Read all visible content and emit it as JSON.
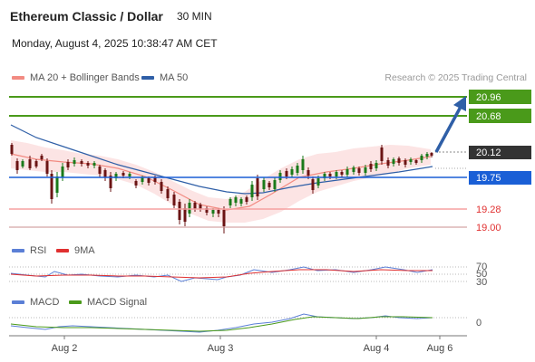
{
  "header": {
    "title": "Ethereum Classic / Dollar",
    "timeframe": "30 MIN",
    "datetime": "Monday, August 4, 2025 10:38:47 AM CET"
  },
  "legend": {
    "ma20": "MA 20 + Bollinger Bands",
    "ma20_color": "#f28b82",
    "ma50": "MA 50",
    "ma50_color": "#2f5fa7",
    "rsi": "RSI",
    "rsi_color": "#5b7fd6",
    "rsi_9ma": "9MA",
    "rsi_9ma_color": "#e03030",
    "macd": "MACD",
    "macd_color": "#5b7fd6",
    "macd_signal": "MACD Signal",
    "macd_signal_color": "#4a9a1a"
  },
  "copyright": "Research © 2025 Trading Central",
  "levels": [
    {
      "label": "20.96",
      "kind": "target",
      "color": "#4a9a1a"
    },
    {
      "label": "20.68",
      "kind": "target",
      "color": "#4a9a1a"
    },
    {
      "label": "20.12",
      "kind": "last",
      "color": "#333333"
    },
    {
      "label": "19.75",
      "kind": "pivot",
      "color": "#1a5fd6"
    },
    {
      "label": "19.28",
      "kind": "support",
      "color": "#e03030"
    },
    {
      "label": "19.00",
      "kind": "support",
      "color": "#e03030"
    }
  ],
  "rsi_levels": [
    "70",
    "50",
    "30"
  ],
  "macd_zero": "0",
  "x_axis": [
    "Aug 2",
    "Aug 3",
    "Aug 4",
    "Aug 6"
  ]
}
